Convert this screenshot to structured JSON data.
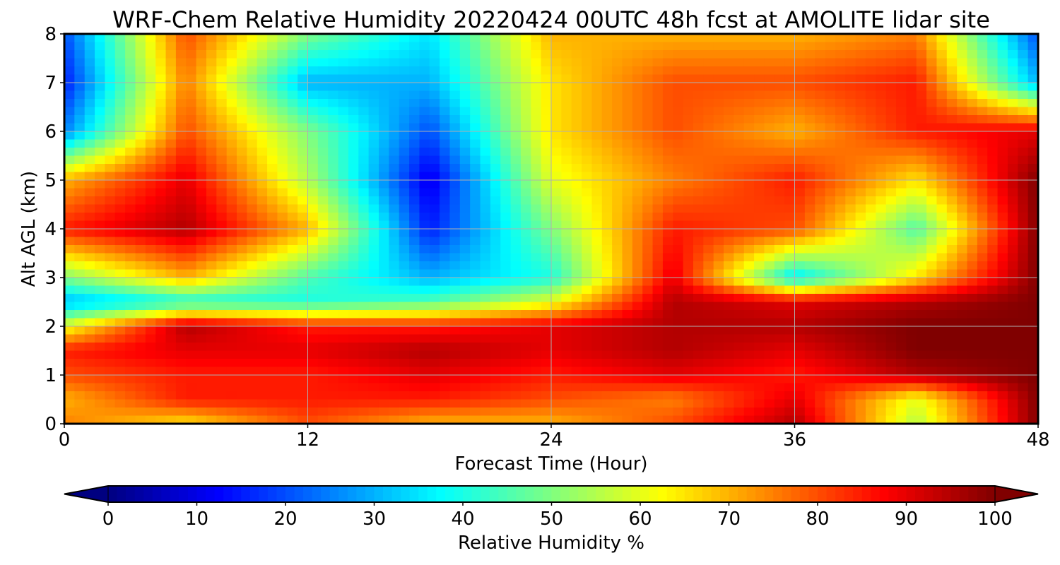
{
  "chart_data": {
    "type": "heatmap",
    "title": "WRF-Chem Relative Humidity 20220424 00UTC 48h fcst at AMOLITE lidar site",
    "xlabel": "Forecast Time (Hour)",
    "ylabel": "Alt AGL (km)",
    "xlim": [
      0,
      48
    ],
    "ylim": [
      0,
      8
    ],
    "xticks": [
      0,
      12,
      24,
      36,
      48
    ],
    "yticks": [
      0,
      1,
      2,
      3,
      4,
      5,
      6,
      7,
      8
    ],
    "grid": true,
    "colorbar": {
      "label": "Relative Humidity %",
      "ticks": [
        0,
        10,
        20,
        30,
        40,
        50,
        60,
        70,
        80,
        90,
        100
      ],
      "range": [
        0,
        100
      ],
      "extend": "both",
      "colormap": "jet",
      "orientation": "horizontal"
    },
    "x": [
      0,
      6,
      12,
      18,
      24,
      30,
      36,
      42,
      48
    ],
    "y": [
      0,
      0.5,
      1,
      1.5,
      2,
      2.5,
      3,
      4,
      5,
      6,
      7,
      8
    ],
    "z": [
      [
        75,
        65,
        80,
        70,
        70,
        80,
        95,
        55,
        100
      ],
      [
        70,
        85,
        85,
        85,
        80,
        75,
        90,
        60,
        100
      ],
      [
        80,
        85,
        85,
        90,
        85,
        90,
        85,
        95,
        100
      ],
      [
        85,
        90,
        90,
        95,
        90,
        95,
        90,
        100,
        100
      ],
      [
        60,
        95,
        85,
        85,
        90,
        95,
        95,
        100,
        100
      ],
      [
        30,
        40,
        40,
        45,
        60,
        95,
        90,
        95,
        100
      ],
      [
        50,
        70,
        45,
        30,
        40,
        90,
        35,
        65,
        100
      ],
      [
        85,
        95,
        70,
        15,
        50,
        85,
        80,
        45,
        100
      ],
      [
        70,
        90,
        55,
        10,
        60,
        75,
        85,
        65,
        100
      ],
      [
        25,
        80,
        50,
        20,
        65,
        80,
        70,
        85,
        90
      ],
      [
        15,
        75,
        30,
        30,
        65,
        80,
        80,
        85,
        30
      ],
      [
        20,
        80,
        50,
        35,
        70,
        70,
        70,
        75,
        20
      ]
    ]
  }
}
